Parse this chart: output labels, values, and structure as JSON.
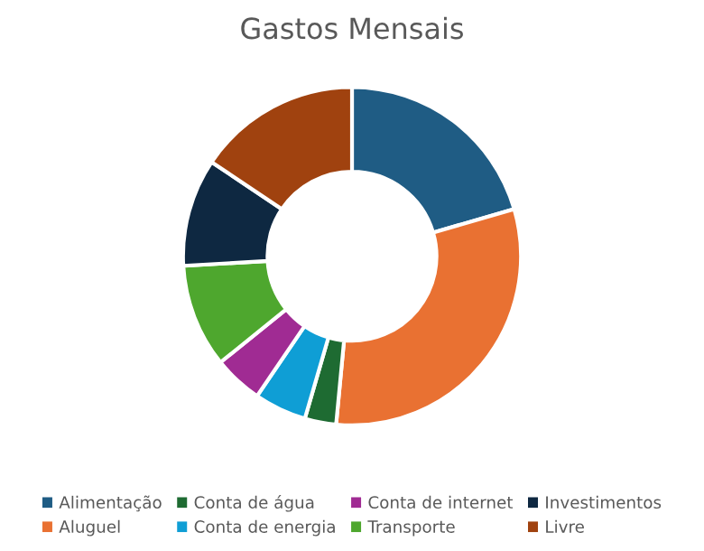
{
  "chart_data": {
    "type": "donut",
    "title": "Gastos Mensais",
    "categories": [
      "Alimentação",
      "Aluguel",
      "Conta de água",
      "Conta de energia",
      "Conta de internet",
      "Transporte",
      "Investimentos",
      "Livre"
    ],
    "values": [
      20.5,
      31,
      3,
      5,
      4.7,
      9.9,
      10.3,
      15.6
    ],
    "colors": [
      "#1f5c84",
      "#e97132",
      "#1e6b32",
      "#0f9ed5",
      "#a02b93",
      "#4ea72e",
      "#0e2841",
      "#a0420f"
    ],
    "legend": "bottom"
  }
}
